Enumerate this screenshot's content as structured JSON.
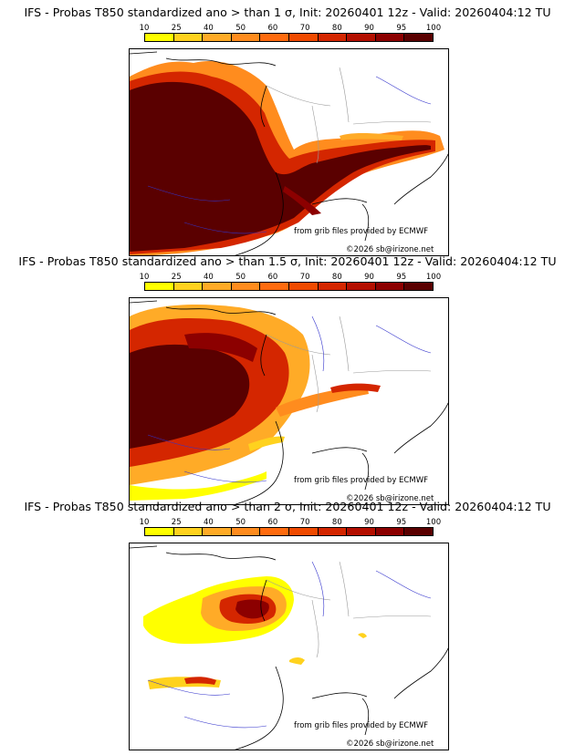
{
  "colorbar": {
    "ticks": [
      "10",
      "25",
      "40",
      "50",
      "60",
      "70",
      "80",
      "90",
      "95",
      "100"
    ],
    "colors": [
      "#ffff00",
      "#ffd21e",
      "#ffab27",
      "#ff8c1e",
      "#ff6b0f",
      "#f04a00",
      "#d42600",
      "#b40f00",
      "#8c0000",
      "#5a0000"
    ]
  },
  "credits": {
    "source": "from grib files provided by ECMWF",
    "copyright": "©2026 sb@irizone.net"
  },
  "panels": [
    {
      "title": "IFS - Probas T850  standardized ano > than 1 σ, Init: 20260401 12z - Valid: 20260404:12 TU"
    },
    {
      "title": "IFS - Probas T850  standardized ano > than 1.5 σ, Init: 20260401 12z - Valid: 20260404:12 TU"
    },
    {
      "title": "IFS - Probas T850  standardized ano > than 2 σ, Init: 20260401 12z - Valid: 20260404:12 TU"
    }
  ]
}
